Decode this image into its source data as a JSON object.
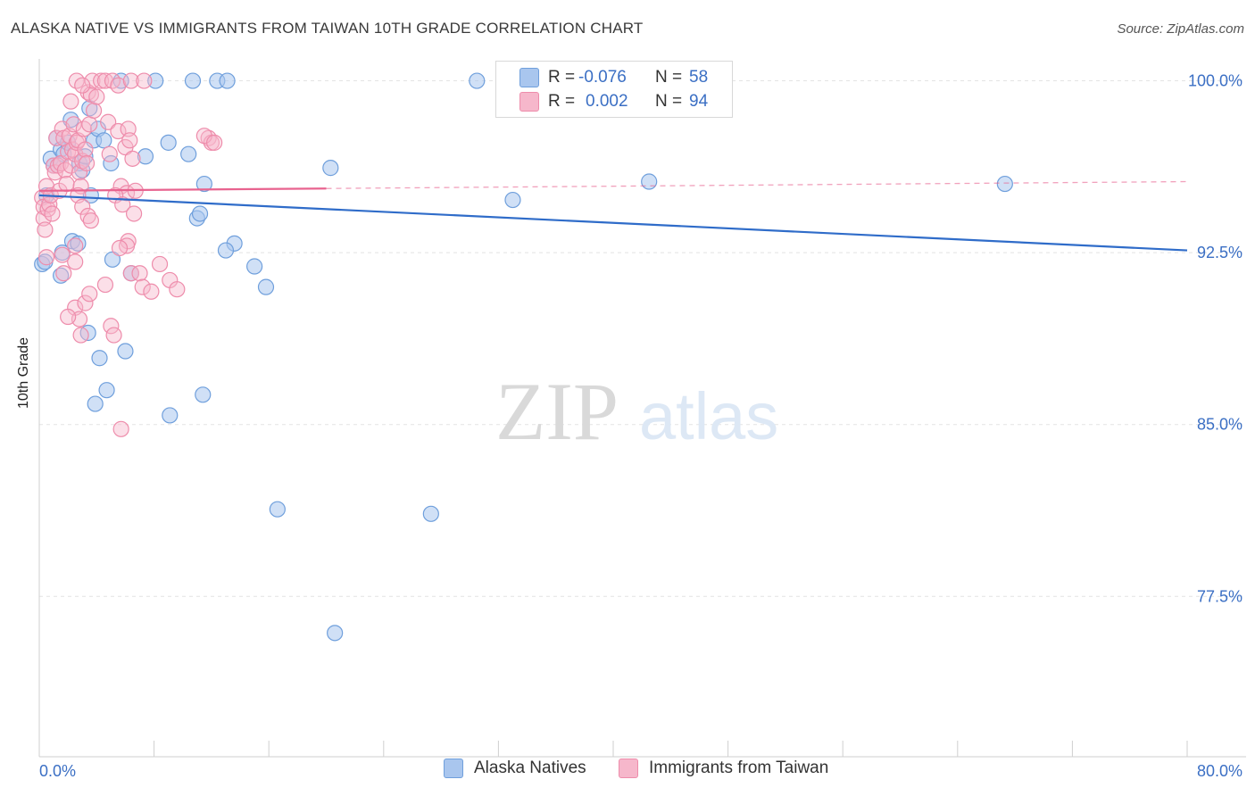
{
  "header": {
    "title": "ALASKA NATIVE VS IMMIGRANTS FROM TAIWAN 10TH GRADE CORRELATION CHART",
    "source": "Source: ZipAtlas.com"
  },
  "watermark": {
    "zip": "ZIP",
    "atlas": "atlas"
  },
  "legend_top": {
    "rows": [
      {
        "r_label": "R =",
        "r_value": "-0.076",
        "n_label": "N =",
        "n_value": "58"
      },
      {
        "r_label": "R =",
        "r_value": "0.002",
        "n_label": "N =",
        "n_value": "94"
      }
    ]
  },
  "legend_bottom": [
    "Alaska Natives",
    "Immigrants from Taiwan"
  ],
  "colors": {
    "blue_fill": "#a9c6ee",
    "blue_stroke": "#6f9fdc",
    "blue_line": "#2f6cc9",
    "pink_fill": "#f6b7cb",
    "pink_stroke": "#ee8cab",
    "pink_line": "#e8638f",
    "tick_text": "#3b6fc4",
    "grid": "#e3e3e3"
  },
  "chart_data": {
    "type": "scatter",
    "title": "ALASKA NATIVE VS IMMIGRANTS FROM TAIWAN 10TH GRADE CORRELATION CHART",
    "xlabel": "",
    "ylabel": "10th Grade",
    "xlim": [
      0,
      80
    ],
    "ylim": [
      70.5,
      100.8
    ],
    "x_tick_labels": [
      "0.0%",
      "80.0%"
    ],
    "y_ticks": [
      77.5,
      85.0,
      92.5,
      100.0
    ],
    "y_tick_labels": [
      "77.5%",
      "85.0%",
      "92.5%",
      "100.0%"
    ],
    "grid": true,
    "legend_position": "top-center",
    "series": [
      {
        "name": "Alaska Natives",
        "R": -0.076,
        "N": 58,
        "trend": {
          "x": [
            0,
            80
          ],
          "y": [
            95.0,
            92.6
          ],
          "dashed_from": null
        },
        "points": [
          [
            0.2,
            92.0
          ],
          [
            0.4,
            92.1
          ],
          [
            0.5,
            95.0
          ],
          [
            0.8,
            96.6
          ],
          [
            1.0,
            96.3
          ],
          [
            1.2,
            97.5
          ],
          [
            1.5,
            97.0
          ],
          [
            1.7,
            96.8
          ],
          [
            2.0,
            97.3
          ],
          [
            2.2,
            98.3
          ],
          [
            2.8,
            96.4
          ],
          [
            3.0,
            96.1
          ],
          [
            3.2,
            96.7
          ],
          [
            3.5,
            98.8
          ],
          [
            3.6,
            95.0
          ],
          [
            3.8,
            97.4
          ],
          [
            4.1,
            97.9
          ],
          [
            4.5,
            97.4
          ],
          [
            5.0,
            96.4
          ],
          [
            7.4,
            96.7
          ],
          [
            9.0,
            97.3
          ],
          [
            10.4,
            96.8
          ],
          [
            11.5,
            95.5
          ],
          [
            11.0,
            94.0
          ],
          [
            11.2,
            94.2
          ],
          [
            5.7,
            100.0
          ],
          [
            10.7,
            100.0
          ],
          [
            8.1,
            100.0
          ],
          [
            12.4,
            100.0
          ],
          [
            13.1,
            100.0
          ],
          [
            30.5,
            100.0
          ],
          [
            41.3,
            100.0
          ],
          [
            44.1,
            100.0
          ],
          [
            44.6,
            100.0
          ],
          [
            42.5,
            95.6
          ],
          [
            13.6,
            92.9
          ],
          [
            15.0,
            91.9
          ],
          [
            15.8,
            91.0
          ],
          [
            13.0,
            92.6
          ],
          [
            1.6,
            92.5
          ],
          [
            1.5,
            91.5
          ],
          [
            2.3,
            93.0
          ],
          [
            2.7,
            92.9
          ],
          [
            5.1,
            92.2
          ],
          [
            6.4,
            91.6
          ],
          [
            3.4,
            89.0
          ],
          [
            4.2,
            87.9
          ],
          [
            6.0,
            88.2
          ],
          [
            11.4,
            86.3
          ],
          [
            3.9,
            85.9
          ],
          [
            4.7,
            86.5
          ],
          [
            9.1,
            85.4
          ],
          [
            20.3,
            96.2
          ],
          [
            33.0,
            94.8
          ],
          [
            67.3,
            95.5
          ],
          [
            16.6,
            81.3
          ],
          [
            27.3,
            81.1
          ],
          [
            20.6,
            75.9
          ]
        ]
      },
      {
        "name": "Immigrants from Taiwan",
        "R": 0.002,
        "N": 94,
        "trend": {
          "x": [
            0,
            20
          ],
          "y": [
            95.2,
            95.3
          ],
          "dashed_to": [
            80,
            95.6
          ]
        },
        "points": [
          [
            0.2,
            94.9
          ],
          [
            0.3,
            94.5
          ],
          [
            0.3,
            94.0
          ],
          [
            0.4,
            93.5
          ],
          [
            0.5,
            95.4
          ],
          [
            0.5,
            92.3
          ],
          [
            0.6,
            94.4
          ],
          [
            0.7,
            94.6
          ],
          [
            0.8,
            95.0
          ],
          [
            0.9,
            94.2
          ],
          [
            1.0,
            96.3
          ],
          [
            1.1,
            96.0
          ],
          [
            1.2,
            97.5
          ],
          [
            1.3,
            96.3
          ],
          [
            1.4,
            95.2
          ],
          [
            1.5,
            96.4
          ],
          [
            1.6,
            97.9
          ],
          [
            1.7,
            97.5
          ],
          [
            1.8,
            96.1
          ],
          [
            1.9,
            95.5
          ],
          [
            2.0,
            96.9
          ],
          [
            2.1,
            97.6
          ],
          [
            2.2,
            96.3
          ],
          [
            2.3,
            97.0
          ],
          [
            2.4,
            98.1
          ],
          [
            2.5,
            96.8
          ],
          [
            2.6,
            97.3
          ],
          [
            2.7,
            97.4
          ],
          [
            2.8,
            96.0
          ],
          [
            2.9,
            95.4
          ],
          [
            3.0,
            96.5
          ],
          [
            3.1,
            97.9
          ],
          [
            3.2,
            97.0
          ],
          [
            3.3,
            96.4
          ],
          [
            3.4,
            99.5
          ],
          [
            3.5,
            98.1
          ],
          [
            3.6,
            99.4
          ],
          [
            3.7,
            100.0
          ],
          [
            3.8,
            98.7
          ],
          [
            4.0,
            99.3
          ],
          [
            4.3,
            100.0
          ],
          [
            4.6,
            100.0
          ],
          [
            5.1,
            100.0
          ],
          [
            5.5,
            99.8
          ],
          [
            2.2,
            99.1
          ],
          [
            2.6,
            100.0
          ],
          [
            3.0,
            99.8
          ],
          [
            6.4,
            100.0
          ],
          [
            7.3,
            100.0
          ],
          [
            4.8,
            98.2
          ],
          [
            5.5,
            97.8
          ],
          [
            6.0,
            97.1
          ],
          [
            4.9,
            96.8
          ],
          [
            5.7,
            95.4
          ],
          [
            6.1,
            95.1
          ],
          [
            5.3,
            95.0
          ],
          [
            6.2,
            97.9
          ],
          [
            6.3,
            97.4
          ],
          [
            6.5,
            96.6
          ],
          [
            5.8,
            94.6
          ],
          [
            6.6,
            94.2
          ],
          [
            6.7,
            95.2
          ],
          [
            11.8,
            97.5
          ],
          [
            12.0,
            97.3
          ],
          [
            6.2,
            93.0
          ],
          [
            6.1,
            92.8
          ],
          [
            5.6,
            92.7
          ],
          [
            6.4,
            91.6
          ],
          [
            7.0,
            91.6
          ],
          [
            7.2,
            91.0
          ],
          [
            7.8,
            90.8
          ],
          [
            8.4,
            92.0
          ],
          [
            9.1,
            91.3
          ],
          [
            9.6,
            90.9
          ],
          [
            2.7,
            95.0
          ],
          [
            3.0,
            94.5
          ],
          [
            3.4,
            94.1
          ],
          [
            3.6,
            93.9
          ],
          [
            2.5,
            92.1
          ],
          [
            2.5,
            92.8
          ],
          [
            1.6,
            92.4
          ],
          [
            1.7,
            91.6
          ],
          [
            2.5,
            90.1
          ],
          [
            2.8,
            89.6
          ],
          [
            3.2,
            90.3
          ],
          [
            4.6,
            91.1
          ],
          [
            11.5,
            97.6
          ],
          [
            12.2,
            97.3
          ],
          [
            5.0,
            89.3
          ],
          [
            5.2,
            88.9
          ],
          [
            2.9,
            88.9
          ],
          [
            2.0,
            89.7
          ],
          [
            5.7,
            84.8
          ],
          [
            3.5,
            90.7
          ]
        ]
      }
    ]
  }
}
